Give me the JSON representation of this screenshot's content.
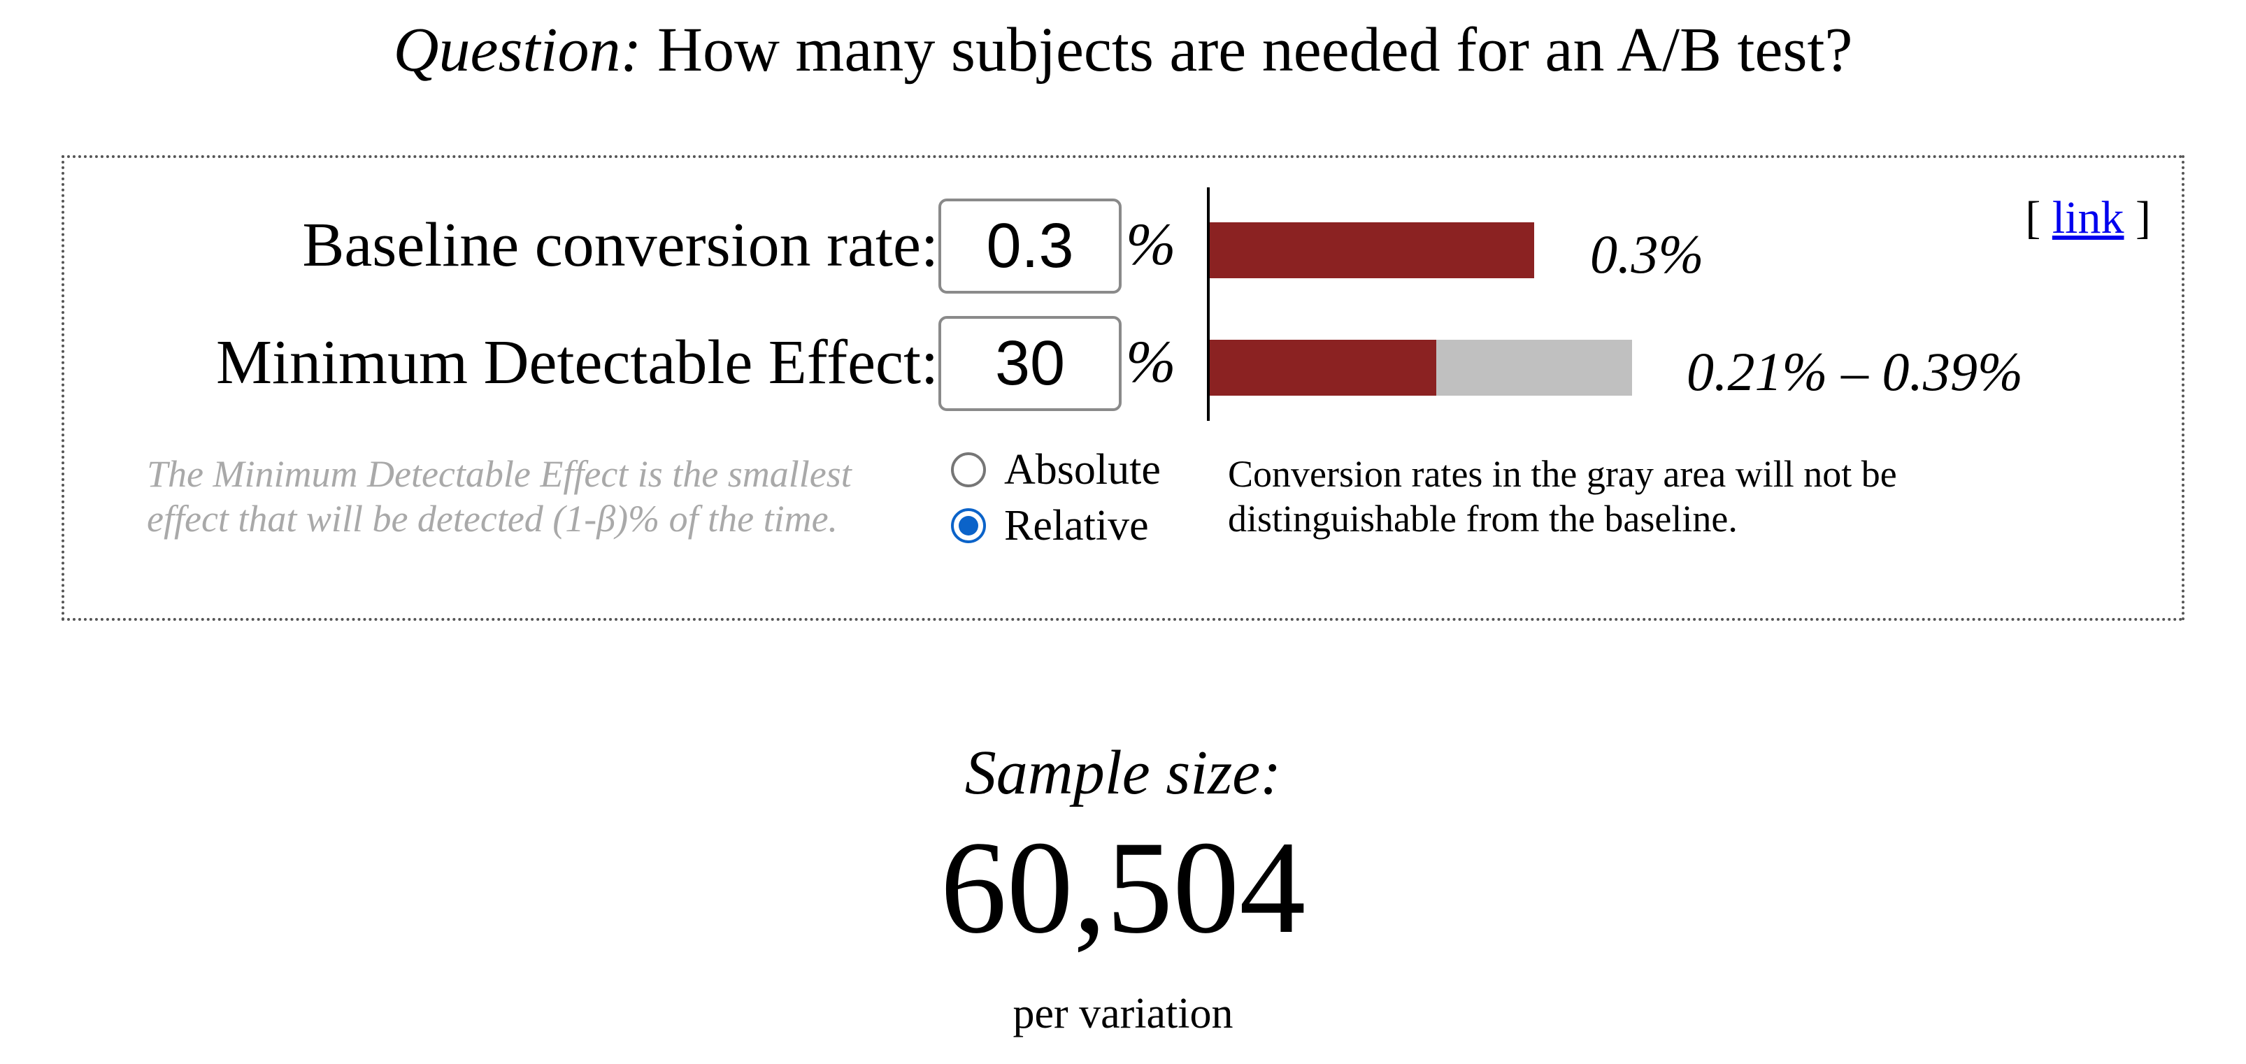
{
  "question": {
    "prefix": "Question:",
    "text": " How many subjects are needed for an A/B test?"
  },
  "panel": {
    "link_open": "[ ",
    "link_text": "link",
    "link_close": " ]",
    "baseline": {
      "label": "Baseline conversion rate:",
      "value": "0.3",
      "unit": "%",
      "bar_text": "0.3%"
    },
    "mde": {
      "label": "Minimum Detectable Effect:",
      "value": "30",
      "unit": "%",
      "range_text": "0.21% – 0.39%",
      "help": "The Minimum Detectable Effect is the smallest effect that will be detected (1-β)% of the time."
    },
    "mode": {
      "options": [
        "Absolute",
        "Relative"
      ],
      "selected": "Relative"
    },
    "gray_note": "Conversion rates in the gray area will not be distinguishable from the baseline."
  },
  "result": {
    "title": "Sample size:",
    "value": "60,504",
    "unit": "per variation"
  },
  "colors": {
    "bar_red": "#8b2222",
    "bar_gray": "#c0c0c0",
    "link": "#0000ee",
    "radio_selected": "#0b63c9",
    "help_text": "#a9a9a9"
  }
}
